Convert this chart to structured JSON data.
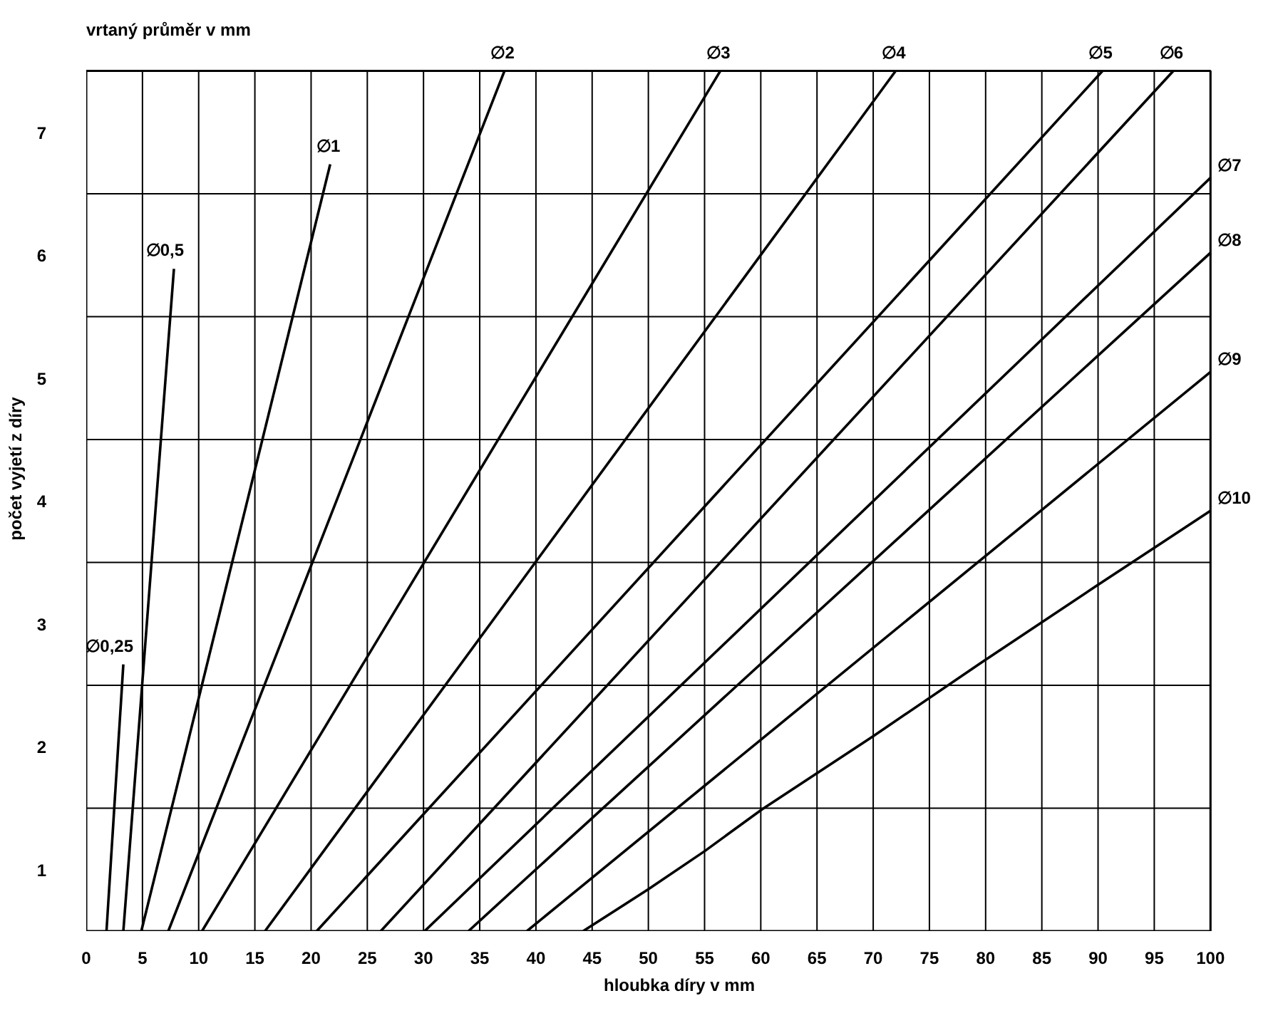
{
  "chart_data": {
    "type": "line",
    "xlabel": "hloubka díry v mm",
    "ylabel": "počet vyjetí z díry",
    "annotations": [
      "vrtaný průměr v mm"
    ],
    "xlim": [
      0,
      100
    ],
    "ylim": [
      0.5,
      7.5
    ],
    "xticks": [
      0,
      5,
      10,
      15,
      20,
      25,
      30,
      35,
      40,
      45,
      50,
      55,
      60,
      65,
      70,
      75,
      80,
      85,
      90,
      95,
      100
    ],
    "yticks": [
      1,
      {
        "value": 1.5,
        "label": null
      },
      2,
      {
        "value": 2.5,
        "label": null
      },
      3,
      {
        "value": 3.5,
        "label": null
      },
      4,
      {
        "value": 4.5,
        "label": null
      },
      5,
      {
        "value": 5.5,
        "label": null
      },
      6,
      {
        "value": 6.5,
        "label": null
      },
      7
    ],
    "grid": true,
    "marker": "none",
    "line_style": "solid",
    "series": [
      {
        "name": "∅0,25",
        "color": "#000000",
        "x": [
          1.8,
          3.3
        ],
        "values": [
          0.5,
          2.67
        ]
      },
      {
        "name": "∅0,5",
        "color": "#000000",
        "x": [
          3.3,
          7.8
        ],
        "values": [
          0.5,
          5.89
        ]
      },
      {
        "name": "∅1",
        "color": "#000000",
        "x": [
          4.9,
          21.7
        ],
        "values": [
          0.5,
          6.74
        ]
      },
      {
        "name": "∅2",
        "color": "#000000",
        "x": [
          7.3,
          37.2
        ],
        "values": [
          0.5,
          7.5
        ]
      },
      {
        "name": "∅3",
        "color": "#000000",
        "x": [
          10.3,
          56.4
        ],
        "values": [
          0.5,
          7.5
        ]
      },
      {
        "name": "∅4",
        "color": "#000000",
        "x": [
          15.9,
          72.0
        ],
        "values": [
          0.5,
          7.5
        ]
      },
      {
        "name": "∅5",
        "color": "#000000",
        "x": [
          20.5,
          90.4
        ],
        "values": [
          0.5,
          7.5
        ]
      },
      {
        "name": "∅6",
        "color": "#000000",
        "x": [
          26.2,
          96.7
        ],
        "values": [
          0.5,
          7.5
        ]
      },
      {
        "name": "∅7",
        "color": "#000000",
        "x": [
          30.1,
          100
        ],
        "values": [
          0.5,
          6.63
        ]
      },
      {
        "name": "∅8",
        "color": "#000000",
        "x": [
          34.0,
          100
        ],
        "values": [
          0.5,
          6.02
        ]
      },
      {
        "name": "∅9",
        "color": "#000000",
        "x": [
          39.2,
          100
        ],
        "values": [
          0.5,
          5.05
        ]
      },
      {
        "name": "∅10",
        "color": "#000000",
        "x": [
          44.2,
          50.0,
          55.0,
          60.1,
          69.9,
          79.7,
          89.7,
          100
        ],
        "values": [
          0.5,
          0.84,
          1.15,
          1.49,
          2.08,
          2.69,
          3.3,
          3.92
        ]
      }
    ]
  }
}
